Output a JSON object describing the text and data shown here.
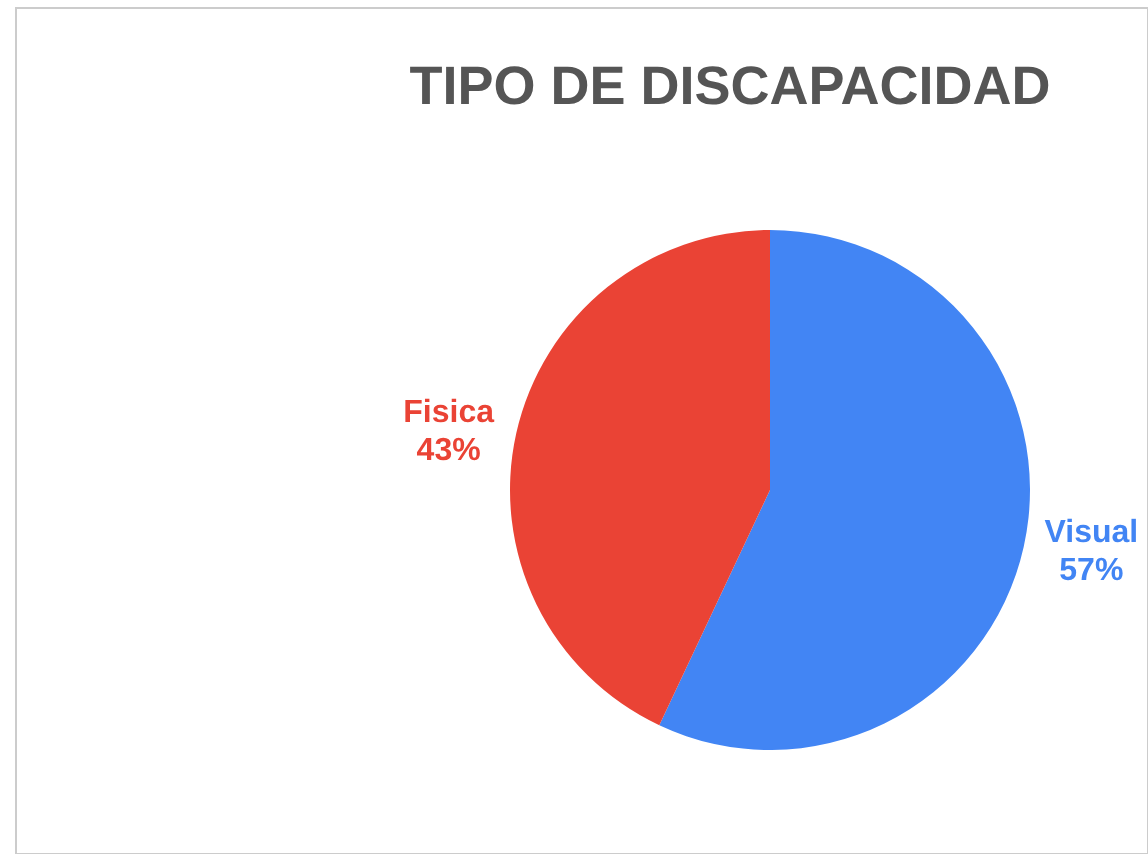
{
  "chart_data": {
    "type": "pie",
    "title": "TIPO DE DISCAPACIDAD",
    "categories": [
      "Visual",
      "Fisica"
    ],
    "values": [
      57,
      43
    ],
    "colors": [
      "#4285f4",
      "#ea4335"
    ],
    "value_labels": [
      "57%",
      "43%"
    ]
  }
}
